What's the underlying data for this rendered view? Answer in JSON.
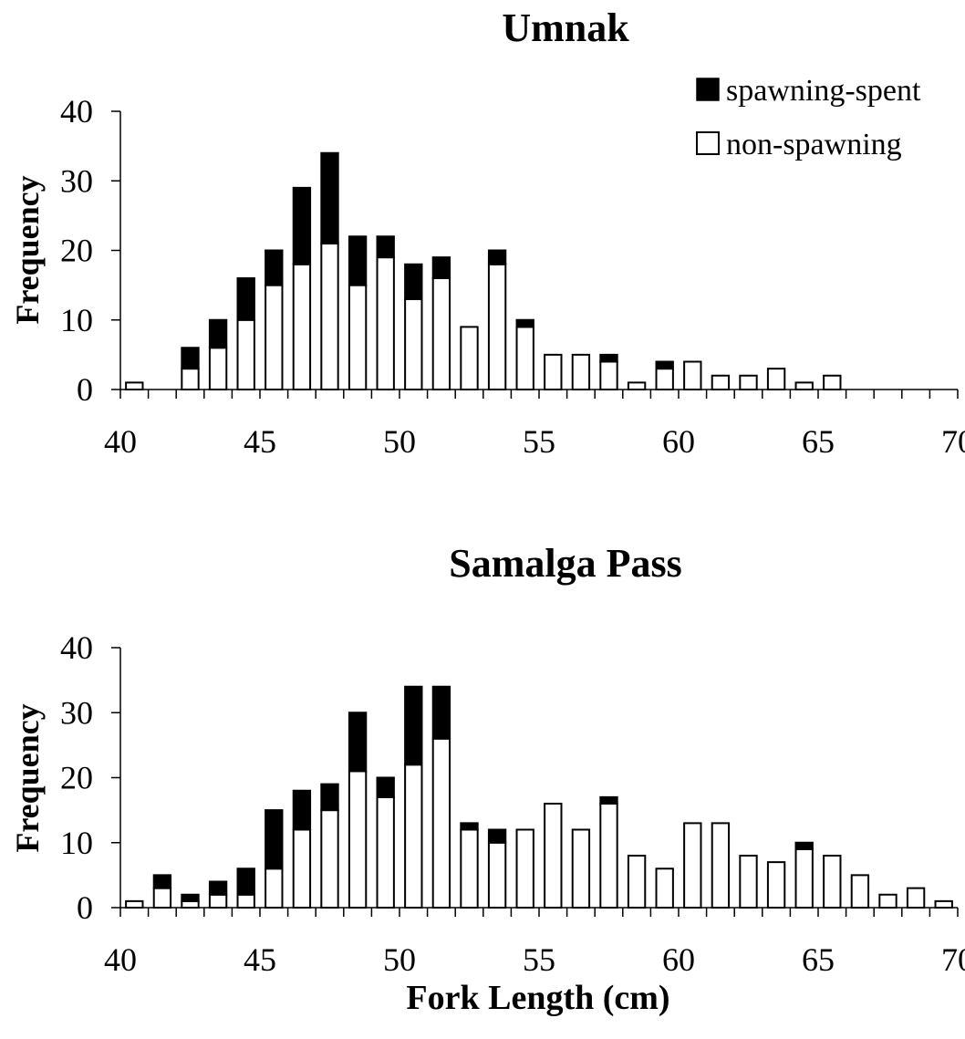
{
  "chart_data": [
    {
      "type": "bar",
      "stacked": true,
      "title": "Umnak",
      "xlabel": "",
      "ylabel": "Frequency",
      "xlim": [
        40,
        70
      ],
      "ylim": [
        0,
        40
      ],
      "yticks": [
        "0",
        "10",
        "20",
        "30",
        "40"
      ],
      "xticks": [
        "40",
        "45",
        "50",
        "55",
        "60",
        "65",
        "70"
      ],
      "legend": {
        "position": "top-right",
        "entries": [
          "spawning-spent",
          "non-spawning"
        ]
      },
      "x": [
        41,
        42,
        43,
        44,
        45,
        46,
        47,
        48,
        49,
        50,
        51,
        52,
        53,
        54,
        55,
        56,
        57,
        58,
        59,
        60,
        61,
        62,
        63,
        64,
        65,
        66,
        67,
        68,
        69,
        70
      ],
      "series": [
        {
          "name": "non-spawning",
          "color": "#ffffff",
          "values": [
            1,
            0,
            3,
            6,
            10,
            15,
            18,
            21,
            15,
            19,
            13,
            16,
            9,
            18,
            9,
            5,
            5,
            4,
            1,
            3,
            4,
            2,
            2,
            3,
            1,
            2,
            0,
            0,
            0,
            0
          ]
        },
        {
          "name": "spawning-spent",
          "color": "#000000",
          "values": [
            0,
            0,
            3,
            4,
            6,
            5,
            11,
            13,
            7,
            3,
            5,
            3,
            0,
            2,
            1,
            0,
            0,
            1,
            0,
            1,
            0,
            0,
            0,
            0,
            0,
            0,
            0,
            0,
            0,
            0
          ]
        }
      ]
    },
    {
      "type": "bar",
      "stacked": true,
      "title": "Samalga Pass",
      "xlabel": "Fork Length (cm)",
      "ylabel": "Frequency",
      "xlim": [
        40,
        70
      ],
      "ylim": [
        0,
        40
      ],
      "yticks": [
        "0",
        "10",
        "20",
        "30",
        "40"
      ],
      "xticks": [
        "40",
        "45",
        "50",
        "55",
        "60",
        "65",
        "70"
      ],
      "x": [
        41,
        42,
        43,
        44,
        45,
        46,
        47,
        48,
        49,
        50,
        51,
        52,
        53,
        54,
        55,
        56,
        57,
        58,
        59,
        60,
        61,
        62,
        63,
        64,
        65,
        66,
        67,
        68,
        69,
        70
      ],
      "series": [
        {
          "name": "non-spawning",
          "color": "#ffffff",
          "values": [
            1,
            3,
            1,
            2,
            2,
            6,
            12,
            15,
            21,
            17,
            22,
            26,
            12,
            10,
            12,
            16,
            12,
            16,
            8,
            6,
            13,
            13,
            8,
            7,
            9,
            8,
            5,
            2,
            3,
            1
          ]
        },
        {
          "name": "spawning-spent",
          "color": "#000000",
          "values": [
            0,
            2,
            1,
            2,
            4,
            9,
            6,
            4,
            9,
            3,
            12,
            8,
            1,
            2,
            0,
            0,
            0,
            1,
            0,
            0,
            0,
            0,
            0,
            0,
            1,
            0,
            0,
            0,
            0,
            0
          ]
        }
      ]
    }
  ]
}
